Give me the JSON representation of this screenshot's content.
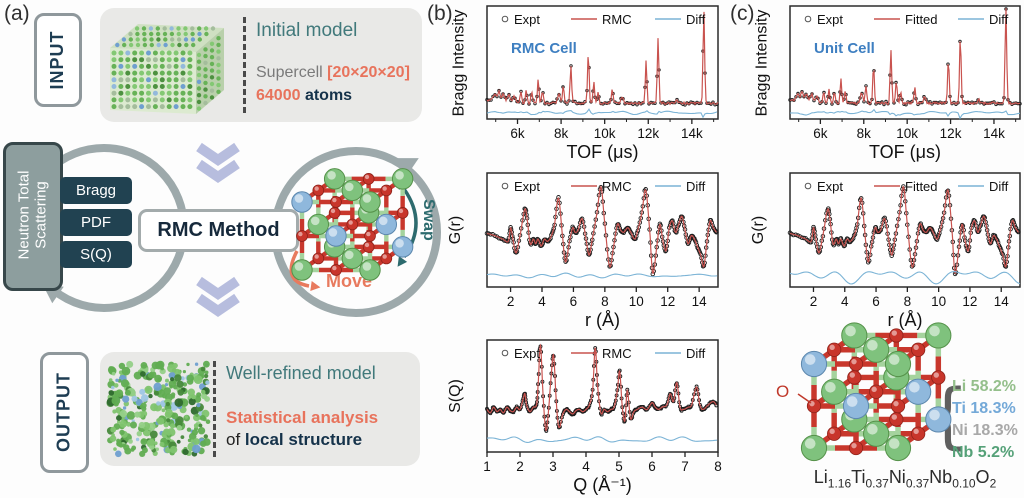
{
  "panel_a": {
    "label": "(a)",
    "input": {
      "tag": "INPUT",
      "heading": "Initial model",
      "supercell_prefix": "Supercell ",
      "supercell_value": "[20×20×20]",
      "atoms_value": "64000",
      "atoms_suffix": " atoms"
    },
    "scattering_box": {
      "line1": "Neutron Total",
      "line2": "Scattering"
    },
    "data_boxes": [
      "Bragg",
      "PDF",
      "S(Q)"
    ],
    "center_box": "RMC Method",
    "swap_label": "Swap",
    "move_label": "Move",
    "output": {
      "tag": "OUTPUT",
      "heading": "Well-refined model",
      "analysis_line": "Statistical analysis",
      "of_prefix": "of ",
      "of_bold": "local structure"
    }
  },
  "panel_b": {
    "label": "(b)"
  },
  "panel_c": {
    "label": "(c)",
    "crystal": {
      "o_label": "O",
      "brace": "{",
      "composition": [
        {
          "element": "Li",
          "value": "58.2%",
          "color": "#94bf8b"
        },
        {
          "element": "Ti",
          "value": "18.3%",
          "color": "#74a9d8"
        },
        {
          "element": "Ni",
          "value": "18.3%",
          "color": "#a8a8a8"
        },
        {
          "element": "Nb",
          "value": "5.2%",
          "color": "#55a178"
        }
      ],
      "formula": [
        {
          "t": "Li",
          "s": "1.16"
        },
        {
          "t": "Ti",
          "s": "0.37"
        },
        {
          "t": "Ni",
          "s": "0.37"
        },
        {
          "t": "Nb",
          "s": "0.10"
        },
        {
          "t": "O",
          "s": "2"
        }
      ]
    }
  },
  "colors": {
    "frame": "#2b2b2b",
    "expt": "#1c1c1c",
    "fit": "#c9534f",
    "diff": "#7cb4d6",
    "annotation": "#3e7fc1",
    "loop": "#9da9ab",
    "chevron": "#b7bdde",
    "swap": "#2d6b6e",
    "move": "#e87a5e",
    "bond_green": "#a5d39e",
    "bond_red": "#c8372c",
    "sphere_green": "#7fc27d",
    "sphere_blue": "#8fb8dc",
    "sphere_red": "#c8352b",
    "teal_heading": "#41797b",
    "orange_accent": "#e8735c",
    "navy_text": "#15324a"
  },
  "chart_data": [
    {
      "id": "b-bragg",
      "type": "line",
      "title": "",
      "ylabel": "Bragg Intensity",
      "xlabel": "TOF (μs)",
      "annotation": "RMC Cell",
      "legend": [
        "Expt",
        "RMC",
        "Diff"
      ],
      "xlim": [
        4600,
        15200
      ],
      "xticks": [
        {
          "v": 6000,
          "label": "6k"
        },
        {
          "v": 8000,
          "label": "8k"
        },
        {
          "v": 10000,
          "label": "10k"
        },
        {
          "v": 12000,
          "label": "12k"
        },
        {
          "v": 14000,
          "label": "14k"
        }
      ],
      "minor_ticks": [
        5000,
        7000,
        9000,
        11000,
        13000,
        15000
      ],
      "baseline": 0.14,
      "diff_level": 0.055,
      "diff_noise": 0.008,
      "peaks": [
        [
          4950,
          0.05
        ],
        [
          5150,
          0.08
        ],
        [
          5350,
          0.06
        ],
        [
          5600,
          0.06
        ],
        [
          5850,
          0.05
        ],
        [
          6150,
          0.1
        ],
        [
          6400,
          0.12
        ],
        [
          6650,
          0.1
        ],
        [
          6950,
          0.21
        ],
        [
          7150,
          0.11
        ],
        [
          7900,
          0.09
        ],
        [
          8100,
          0.16
        ],
        [
          8450,
          0.33
        ],
        [
          9250,
          0.45
        ],
        [
          9500,
          0.19
        ],
        [
          9700,
          0.1
        ],
        [
          10350,
          0.14
        ],
        [
          10800,
          0.05
        ],
        [
          11900,
          0.37
        ],
        [
          12450,
          0.58
        ],
        [
          13300,
          0.03
        ],
        [
          14550,
          0.82
        ]
      ]
    },
    {
      "id": "b-gr",
      "type": "line",
      "title": "",
      "ylabel": "G(r)",
      "xlabel": "r (Å)",
      "legend": [
        "Expt",
        "RMC",
        "Diff"
      ],
      "xlim": [
        0.5,
        15.2
      ],
      "xticks": [
        {
          "v": 2,
          "label": "2"
        },
        {
          "v": 4,
          "label": "4"
        },
        {
          "v": 6,
          "label": "6"
        },
        {
          "v": 8,
          "label": "8"
        },
        {
          "v": 10,
          "label": "10"
        },
        {
          "v": 12,
          "label": "12"
        },
        {
          "v": 14,
          "label": "14"
        }
      ],
      "diff_level": 0.1,
      "diff_noise": 0.012,
      "points": [
        [
          0.5,
          0.47
        ],
        [
          1.0,
          0.45
        ],
        [
          1.5,
          0.42
        ],
        [
          1.85,
          0.4
        ],
        [
          2.0,
          0.52
        ],
        [
          2.15,
          0.42
        ],
        [
          2.35,
          0.3
        ],
        [
          2.6,
          0.45
        ],
        [
          2.9,
          0.68
        ],
        [
          3.05,
          0.6
        ],
        [
          3.25,
          0.38
        ],
        [
          3.45,
          0.42
        ],
        [
          3.6,
          0.38
        ],
        [
          3.75,
          0.42
        ],
        [
          3.95,
          0.36
        ],
        [
          4.15,
          0.42
        ],
        [
          4.35,
          0.4
        ],
        [
          4.6,
          0.45
        ],
        [
          4.8,
          0.55
        ],
        [
          5.05,
          0.78
        ],
        [
          5.3,
          0.45
        ],
        [
          5.5,
          0.22
        ],
        [
          5.75,
          0.4
        ],
        [
          5.95,
          0.52
        ],
        [
          6.1,
          0.48
        ],
        [
          6.3,
          0.5
        ],
        [
          6.55,
          0.6
        ],
        [
          6.8,
          0.42
        ],
        [
          7.0,
          0.28
        ],
        [
          7.2,
          0.42
        ],
        [
          7.5,
          0.65
        ],
        [
          7.75,
          0.88
        ],
        [
          8.0,
          0.55
        ],
        [
          8.3,
          0.18
        ],
        [
          8.55,
          0.35
        ],
        [
          8.8,
          0.55
        ],
        [
          9.0,
          0.5
        ],
        [
          9.2,
          0.48
        ],
        [
          9.45,
          0.52
        ],
        [
          9.65,
          0.48
        ],
        [
          9.9,
          0.42
        ],
        [
          10.1,
          0.5
        ],
        [
          10.35,
          0.65
        ],
        [
          10.6,
          0.85
        ],
        [
          10.85,
          0.5
        ],
        [
          11.05,
          0.12
        ],
        [
          11.3,
          0.35
        ],
        [
          11.5,
          0.55
        ],
        [
          11.7,
          0.4
        ],
        [
          11.9,
          0.32
        ],
        [
          12.1,
          0.52
        ],
        [
          12.3,
          0.58
        ],
        [
          12.5,
          0.48
        ],
        [
          12.7,
          0.55
        ],
        [
          12.9,
          0.62
        ],
        [
          13.1,
          0.5
        ],
        [
          13.3,
          0.38
        ],
        [
          13.5,
          0.45
        ],
        [
          13.7,
          0.42
        ],
        [
          13.9,
          0.35
        ],
        [
          14.1,
          0.28
        ],
        [
          14.3,
          0.18
        ],
        [
          14.5,
          0.4
        ],
        [
          14.7,
          0.58
        ],
        [
          14.9,
          0.52
        ],
        [
          15.1,
          0.48
        ]
      ]
    },
    {
      "id": "b-sq",
      "type": "line",
      "title": "",
      "ylabel": "S(Q)",
      "xlabel": "Q (Å⁻¹)",
      "legend": [
        "Expt",
        "RMC",
        "Diff"
      ],
      "xlim": [
        1,
        8
      ],
      "xticks": [
        {
          "v": 1,
          "label": "1"
        },
        {
          "v": 2,
          "label": "2"
        },
        {
          "v": 3,
          "label": "3"
        },
        {
          "v": 4,
          "label": "4"
        },
        {
          "v": 5,
          "label": "5"
        },
        {
          "v": 6,
          "label": "6"
        },
        {
          "v": 7,
          "label": "7"
        },
        {
          "v": 8,
          "label": "8"
        }
      ],
      "diff_level": 0.11,
      "diff_noise": 0.015,
      "points": [
        [
          1.0,
          0.38
        ],
        [
          1.1,
          0.35
        ],
        [
          1.2,
          0.4
        ],
        [
          1.3,
          0.36
        ],
        [
          1.4,
          0.38
        ],
        [
          1.5,
          0.35
        ],
        [
          1.6,
          0.4
        ],
        [
          1.7,
          0.37
        ],
        [
          1.8,
          0.36
        ],
        [
          1.9,
          0.4
        ],
        [
          2.0,
          0.38
        ],
        [
          2.1,
          0.48
        ],
        [
          2.15,
          0.52
        ],
        [
          2.2,
          0.42
        ],
        [
          2.3,
          0.36
        ],
        [
          2.4,
          0.4
        ],
        [
          2.5,
          0.42
        ],
        [
          2.55,
          0.6
        ],
        [
          2.62,
          0.95
        ],
        [
          2.7,
          0.5
        ],
        [
          2.78,
          0.2
        ],
        [
          2.85,
          0.32
        ],
        [
          2.95,
          0.7
        ],
        [
          3.02,
          0.86
        ],
        [
          3.1,
          0.45
        ],
        [
          3.18,
          0.22
        ],
        [
          3.3,
          0.34
        ],
        [
          3.4,
          0.38
        ],
        [
          3.5,
          0.36
        ],
        [
          3.6,
          0.34
        ],
        [
          3.7,
          0.37
        ],
        [
          3.8,
          0.38
        ],
        [
          3.9,
          0.36
        ],
        [
          4.0,
          0.38
        ],
        [
          4.1,
          0.42
        ],
        [
          4.2,
          0.55
        ],
        [
          4.28,
          0.93
        ],
        [
          4.35,
          0.6
        ],
        [
          4.45,
          0.35
        ],
        [
          4.55,
          0.38
        ],
        [
          4.65,
          0.36
        ],
        [
          4.75,
          0.38
        ],
        [
          4.85,
          0.4
        ],
        [
          4.95,
          0.55
        ],
        [
          5.02,
          0.72
        ],
        [
          5.1,
          0.4
        ],
        [
          5.18,
          0.28
        ],
        [
          5.25,
          0.55
        ],
        [
          5.35,
          0.3
        ],
        [
          5.45,
          0.36
        ],
        [
          5.55,
          0.38
        ],
        [
          5.7,
          0.4
        ],
        [
          5.85,
          0.38
        ],
        [
          6.0,
          0.44
        ],
        [
          6.1,
          0.4
        ],
        [
          6.2,
          0.38
        ],
        [
          6.3,
          0.4
        ],
        [
          6.45,
          0.42
        ],
        [
          6.55,
          0.52
        ],
        [
          6.65,
          0.45
        ],
        [
          6.75,
          0.62
        ],
        [
          6.85,
          0.4
        ],
        [
          6.95,
          0.38
        ],
        [
          7.1,
          0.4
        ],
        [
          7.2,
          0.42
        ],
        [
          7.35,
          0.58
        ],
        [
          7.45,
          0.42
        ],
        [
          7.55,
          0.38
        ],
        [
          7.7,
          0.42
        ],
        [
          7.85,
          0.45
        ],
        [
          7.95,
          0.42
        ]
      ]
    },
    {
      "id": "c-bragg",
      "type": "line",
      "title": "",
      "ylabel": "Bragg Intensity",
      "xlabel": "TOF (μs)",
      "annotation": "Unit Cell",
      "legend": [
        "Expt",
        "Fitted",
        "Diff"
      ],
      "xlim": [
        4600,
        15200
      ],
      "xticks": [
        {
          "v": 6000,
          "label": "6k"
        },
        {
          "v": 8000,
          "label": "8k"
        },
        {
          "v": 10000,
          "label": "10k"
        },
        {
          "v": 12000,
          "label": "12k"
        },
        {
          "v": 14000,
          "label": "14k"
        }
      ],
      "minor_ticks": [
        5000,
        7000,
        9000,
        11000,
        13000,
        15000
      ],
      "baseline": 0.14,
      "diff_level": 0.055,
      "diff_noise": 0.009,
      "peaks": [
        [
          4950,
          0.05
        ],
        [
          5150,
          0.08
        ],
        [
          5350,
          0.06
        ],
        [
          5600,
          0.06
        ],
        [
          5850,
          0.05
        ],
        [
          6150,
          0.1
        ],
        [
          6400,
          0.12
        ],
        [
          6650,
          0.1
        ],
        [
          6950,
          0.21
        ],
        [
          7150,
          0.11
        ],
        [
          7900,
          0.09
        ],
        [
          8100,
          0.16
        ],
        [
          8450,
          0.33
        ],
        [
          9250,
          0.48
        ],
        [
          9500,
          0.2
        ],
        [
          9700,
          0.1
        ],
        [
          10350,
          0.15
        ],
        [
          10800,
          0.05
        ],
        [
          11900,
          0.38
        ],
        [
          12450,
          0.6
        ],
        [
          13300,
          0.03
        ],
        [
          14550,
          0.88
        ]
      ]
    },
    {
      "id": "c-gr",
      "type": "line",
      "title": "",
      "ylabel": "G(r)",
      "xlabel": "r (Å)",
      "legend": [
        "Expt",
        "Fitted",
        "Diff"
      ],
      "xlim": [
        0.5,
        15.2
      ],
      "xticks": [
        {
          "v": 2,
          "label": "2"
        },
        {
          "v": 4,
          "label": "4"
        },
        {
          "v": 6,
          "label": "6"
        },
        {
          "v": 8,
          "label": "8"
        },
        {
          "v": 10,
          "label": "10"
        },
        {
          "v": 12,
          "label": "12"
        },
        {
          "v": 14,
          "label": "14"
        }
      ],
      "diff_level": 0.1,
      "diff_noise": 0.038,
      "points": [
        [
          0.5,
          0.47
        ],
        [
          1.0,
          0.45
        ],
        [
          1.5,
          0.42
        ],
        [
          1.85,
          0.4
        ],
        [
          2.0,
          0.52
        ],
        [
          2.15,
          0.42
        ],
        [
          2.35,
          0.3
        ],
        [
          2.6,
          0.45
        ],
        [
          2.9,
          0.68
        ],
        [
          3.05,
          0.6
        ],
        [
          3.25,
          0.38
        ],
        [
          3.45,
          0.42
        ],
        [
          3.6,
          0.38
        ],
        [
          3.75,
          0.42
        ],
        [
          3.95,
          0.36
        ],
        [
          4.15,
          0.42
        ],
        [
          4.35,
          0.4
        ],
        [
          4.6,
          0.45
        ],
        [
          4.8,
          0.55
        ],
        [
          5.05,
          0.78
        ],
        [
          5.3,
          0.45
        ],
        [
          5.5,
          0.22
        ],
        [
          5.75,
          0.4
        ],
        [
          5.95,
          0.52
        ],
        [
          6.1,
          0.48
        ],
        [
          6.3,
          0.5
        ],
        [
          6.55,
          0.6
        ],
        [
          6.8,
          0.42
        ],
        [
          7.0,
          0.28
        ],
        [
          7.2,
          0.42
        ],
        [
          7.5,
          0.65
        ],
        [
          7.75,
          0.88
        ],
        [
          8.0,
          0.55
        ],
        [
          8.3,
          0.18
        ],
        [
          8.55,
          0.35
        ],
        [
          8.8,
          0.55
        ],
        [
          9.0,
          0.5
        ],
        [
          9.2,
          0.48
        ],
        [
          9.45,
          0.52
        ],
        [
          9.65,
          0.48
        ],
        [
          9.9,
          0.42
        ],
        [
          10.1,
          0.5
        ],
        [
          10.35,
          0.65
        ],
        [
          10.6,
          0.85
        ],
        [
          10.85,
          0.5
        ],
        [
          11.05,
          0.12
        ],
        [
          11.3,
          0.35
        ],
        [
          11.5,
          0.55
        ],
        [
          11.7,
          0.4
        ],
        [
          11.9,
          0.32
        ],
        [
          12.1,
          0.52
        ],
        [
          12.3,
          0.58
        ],
        [
          12.5,
          0.48
        ],
        [
          12.7,
          0.55
        ],
        [
          12.9,
          0.62
        ],
        [
          13.1,
          0.5
        ],
        [
          13.3,
          0.38
        ],
        [
          13.5,
          0.45
        ],
        [
          13.7,
          0.42
        ],
        [
          13.9,
          0.35
        ],
        [
          14.1,
          0.28
        ],
        [
          14.3,
          0.18
        ],
        [
          14.5,
          0.4
        ],
        [
          14.7,
          0.58
        ],
        [
          14.9,
          0.52
        ],
        [
          15.1,
          0.48
        ]
      ]
    }
  ]
}
